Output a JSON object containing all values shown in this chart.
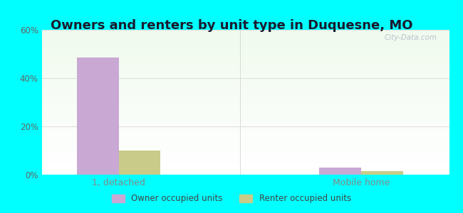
{
  "title": "Owners and renters by unit type in Duquesne, MO",
  "categories": [
    "1, detached",
    "Mobile home"
  ],
  "owner_values": [
    48.5,
    3.0
  ],
  "renter_values": [
    10.0,
    1.5
  ],
  "owner_color": "#c9a8d4",
  "renter_color": "#c8cc88",
  "ylim": [
    0,
    60
  ],
  "yticks": [
    0,
    20,
    40,
    60
  ],
  "ytick_labels": [
    "0%",
    "20%",
    "40%",
    "60%"
  ],
  "background_outer": "#00ffff",
  "grid_color": "#e0e0e0",
  "bar_width": 0.38,
  "group_positions": [
    1.0,
    3.2
  ],
  "legend_owner": "Owner occupied units",
  "legend_renter": "Renter occupied units",
  "watermark": "City-Data.com",
  "title_fontsize": 13,
  "axis_label_color": "#666666",
  "category_label_color": "#888888"
}
